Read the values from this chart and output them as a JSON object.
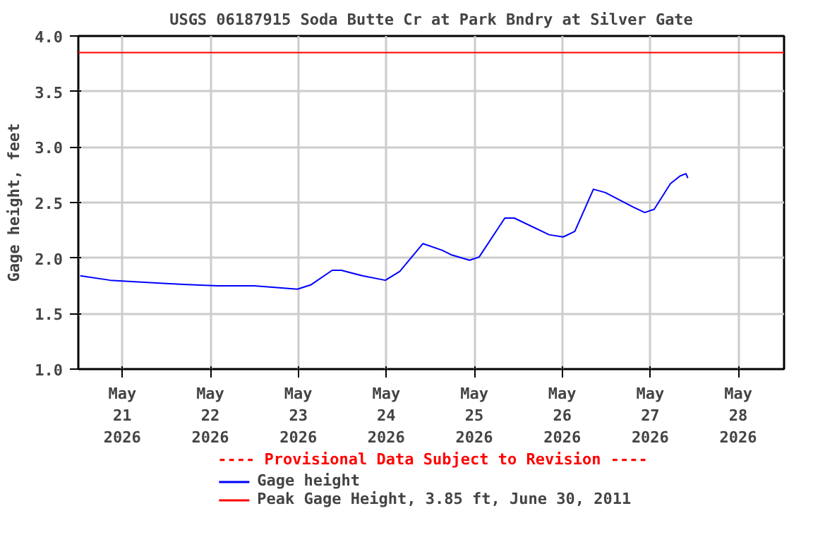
{
  "chart_data": {
    "type": "line",
    "title": "USGS 06187915 Soda Butte Cr at Park Bndry at Silver Gate",
    "ylabel": "Gage height, feet",
    "x": [
      "2026-05-20T12:30",
      "2026-05-20T20:45",
      "2026-05-21T12:00",
      "2026-05-22T02:00",
      "2026-05-22T12:00",
      "2026-05-22T23:45",
      "2026-05-23T03:30",
      "2026-05-23T09:15",
      "2026-05-23T11:45",
      "2026-05-23T17:30",
      "2026-05-23T23:45",
      "2026-05-24T03:40",
      "2026-05-24T10:00",
      "2026-05-24T15:15",
      "2026-05-24T17:40",
      "2026-05-24T22:45",
      "2026-05-25T01:20",
      "2026-05-25T08:20",
      "2026-05-25T10:55",
      "2026-05-25T20:25",
      "2026-05-26T00:15",
      "2026-05-26T03:25",
      "2026-05-26T08:30",
      "2026-05-26T11:45",
      "2026-05-26T19:20",
      "2026-05-26T22:30",
      "2026-05-27T01:05",
      "2026-05-27T05:30",
      "2026-05-27T08:10",
      "2026-05-27T09:45",
      "2026-05-27T10:15"
    ],
    "series": [
      {
        "name": "Gage height",
        "color": "#0000ff",
        "values": [
          1.84,
          1.8,
          1.77,
          1.75,
          1.75,
          1.72,
          1.76,
          1.89,
          1.89,
          1.84,
          1.8,
          1.88,
          2.13,
          2.07,
          2.03,
          1.98,
          2.01,
          2.36,
          2.36,
          2.21,
          2.19,
          2.24,
          2.62,
          2.59,
          2.46,
          2.41,
          2.44,
          2.67,
          2.74,
          2.76,
          2.72
        ]
      }
    ],
    "ref_lines": [
      {
        "axis": "y",
        "value": 3.85,
        "label": "Peak Gage Height, 3.85 ft, June 30, 2011",
        "color": "#ff0000"
      }
    ],
    "annotations": [
      "---- Provisional Data Subject to Revision ----"
    ],
    "xlim": [
      "2026-05-20T12:00",
      "2026-05-28T12:30"
    ],
    "xticks": [
      {
        "value": "2026-05-21",
        "label": "May\n21\n2026"
      },
      {
        "value": "2026-05-22",
        "label": "May\n22\n2026"
      },
      {
        "value": "2026-05-23",
        "label": "May\n23\n2026"
      },
      {
        "value": "2026-05-24",
        "label": "May\n24\n2026"
      },
      {
        "value": "2026-05-25",
        "label": "May\n25\n2026"
      },
      {
        "value": "2026-05-26",
        "label": "May\n26\n2026"
      },
      {
        "value": "2026-05-27",
        "label": "May\n27\n2026"
      },
      {
        "value": "2026-05-28",
        "label": "May\n28\n2026"
      }
    ],
    "ylim": [
      1.0,
      4.0
    ],
    "yticks": [
      {
        "value": 1.0,
        "label": "1.0"
      },
      {
        "value": 1.5,
        "label": "1.5"
      },
      {
        "value": 2.0,
        "label": "2.0"
      },
      {
        "value": 2.5,
        "label": "2.5"
      },
      {
        "value": 3.0,
        "label": "3.0"
      },
      {
        "value": 3.5,
        "label": "3.5"
      },
      {
        "value": 4.0,
        "label": "4.0"
      }
    ],
    "grid": true,
    "legend": "bottom",
    "line_style": "solid"
  }
}
